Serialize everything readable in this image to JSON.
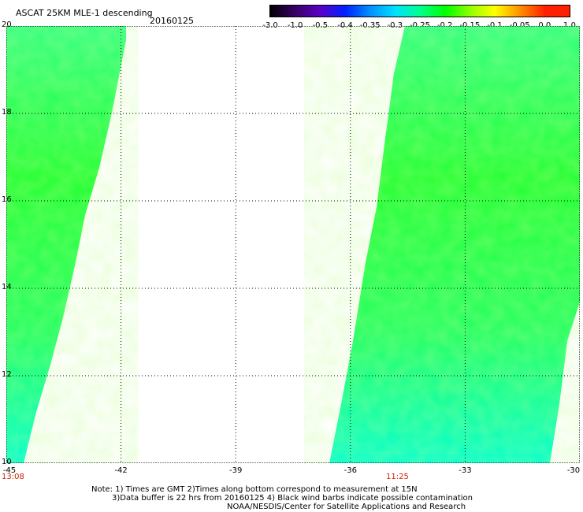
{
  "header": {
    "title": "ASCAT 25KM MLE-1 descending",
    "date": "20160125"
  },
  "colorbar": {
    "tick_labels": [
      "-3.0",
      "-1.0",
      "-0.5",
      "-0.4",
      "-0.35",
      "-0.3",
      "-0.25",
      "-0.2",
      "-0.15",
      "-0.1",
      "-0.05",
      "0.0",
      "1.0"
    ],
    "colors": [
      "#000000",
      "#3a0068",
      "#5a00c8",
      "#0020ff",
      "#0090ff",
      "#00e0ff",
      "#00ff90",
      "#00ff00",
      "#90ff00",
      "#ffff00",
      "#ff9000",
      "#ff2000"
    ]
  },
  "map": {
    "lat_labels": [
      "20",
      "18",
      "16",
      "14",
      "12",
      "10"
    ],
    "lon_labels": [
      "-45",
      "-42",
      "-39",
      "-36",
      "-33",
      "-30"
    ],
    "time_labels": [
      "13:08",
      "11:25"
    ],
    "lat_range": [
      10,
      20
    ],
    "lon_range": [
      -45,
      -30
    ],
    "grid_lat": [
      18,
      16,
      14,
      12
    ],
    "grid_lon": [
      -42,
      -39,
      -36,
      -33
    ]
  },
  "notes": {
    "line1": "Note: 1) Times are GMT 2)Times along bottom correspond to measurement at 15N",
    "line2": "3)Data buffer is 22 hrs from 20160125 4) Black wind barbs indicate possible contamination",
    "line3": "NOAA/NESDIS/Center for Satellite Applications and Research"
  }
}
